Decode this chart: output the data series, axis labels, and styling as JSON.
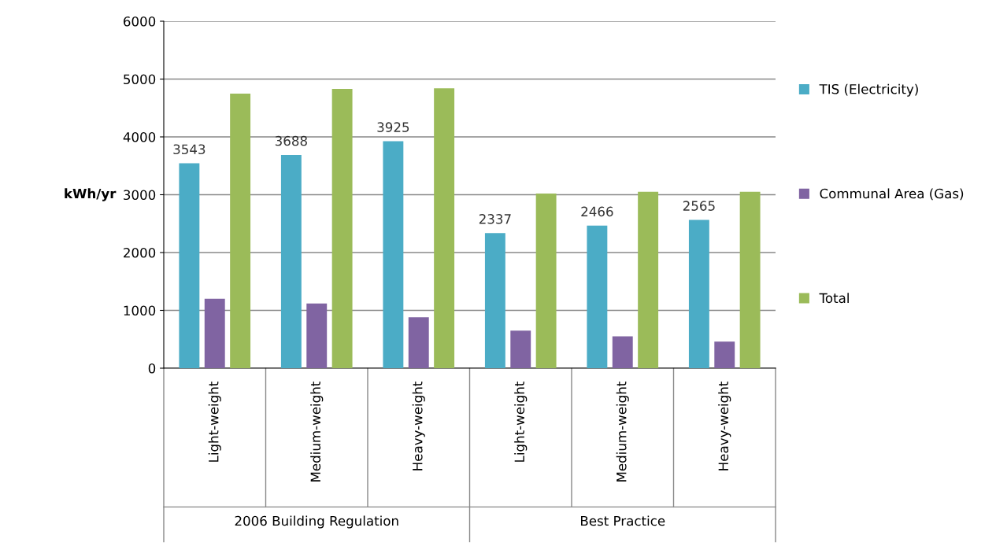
{
  "chart_data": {
    "type": "bar",
    "ylabel": "kWh/yr",
    "categories": [
      "Light-weight",
      "Medium-weight",
      "Heavy-weight",
      "Light-weight",
      "Medium-weight",
      "Heavy-weight"
    ],
    "series": [
      {
        "name": "TIS (Electricity)",
        "color": "#4bacc6",
        "values": [
          3543,
          3688,
          3925,
          2337,
          2466,
          2565
        ],
        "value_labels": [
          "3543",
          "3688",
          "3925",
          "2337",
          "2466",
          "2565"
        ]
      },
      {
        "name": "Communal Area (Gas)",
        "color": "#8064a2",
        "values": [
          1200,
          1120,
          880,
          650,
          550,
          460
        ]
      },
      {
        "name": "Total",
        "color": "#9bbb59",
        "values": [
          4750,
          4830,
          4840,
          3020,
          3050,
          3050
        ]
      }
    ],
    "annotations": [
      "2006 Building Regulation",
      "Best Practice"
    ],
    "ylim": [
      0,
      6000
    ],
    "yticks": [
      0,
      1000,
      2000,
      3000,
      4000,
      5000,
      6000
    ],
    "grid": "y",
    "legend": "right"
  }
}
